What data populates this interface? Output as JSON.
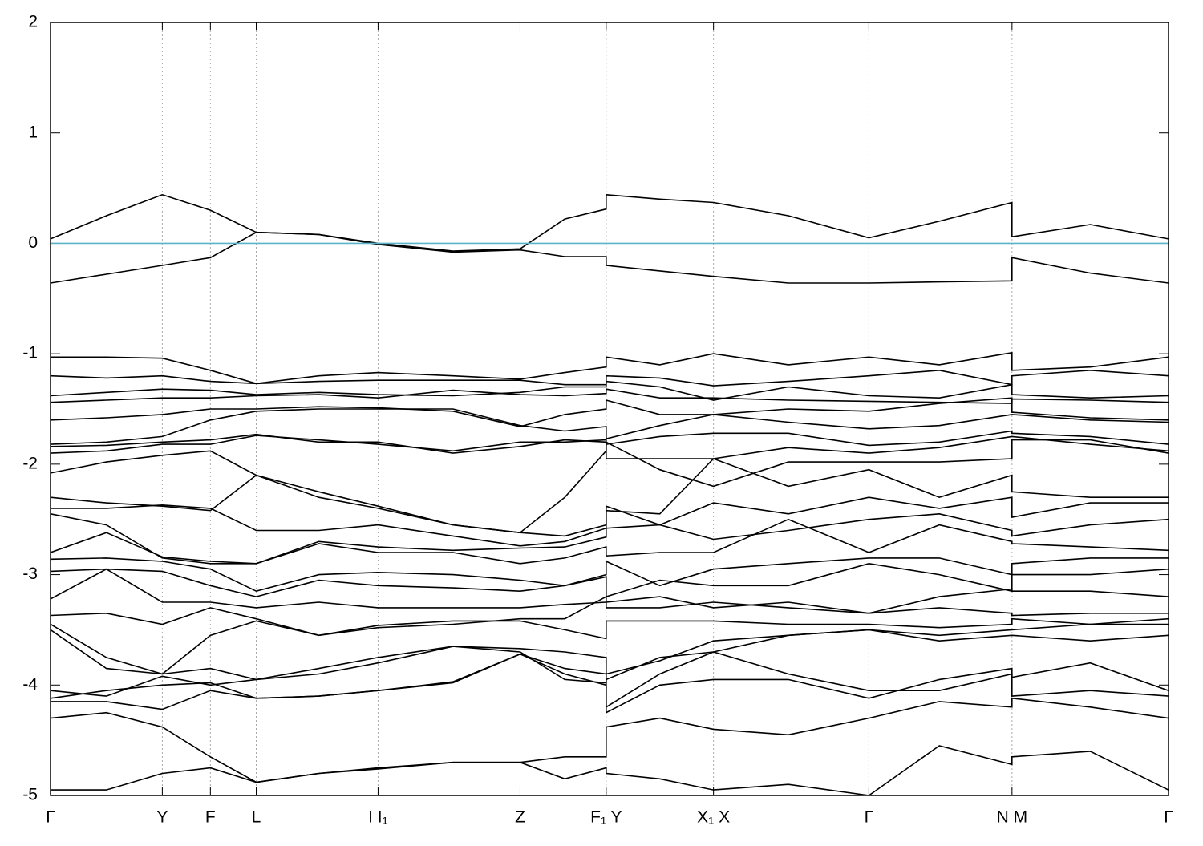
{
  "chart_data": {
    "type": "line",
    "x": [
      0,
      0.5,
      1.0,
      1.43,
      1.84,
      2.4,
      2.93,
      3.6,
      4.2,
      4.6,
      4.97,
      4.97,
      5.45,
      5.93,
      6.6,
      7.32,
      7.95,
      8.6,
      8.6,
      9.3,
      10.0
    ],
    "xlim": [
      0,
      10.0
    ],
    "ylim": [
      -5,
      2
    ],
    "yticks": [
      -5,
      -4,
      -3,
      -2,
      -1,
      0,
      1,
      2
    ],
    "xticks": [
      {
        "value": 0,
        "label": "Γ"
      },
      {
        "value": 1.0,
        "label": "Y"
      },
      {
        "value": 1.43,
        "label": "F"
      },
      {
        "value": 1.84,
        "label": "L"
      },
      {
        "value": 2.93,
        "label": "I  I₁"
      },
      {
        "value": 4.2,
        "label": "Z"
      },
      {
        "value": 4.97,
        "label": "F₁ Y"
      },
      {
        "value": 5.93,
        "label": "X₁ X"
      },
      {
        "value": 7.32,
        "label": "Γ"
      },
      {
        "value": 8.6,
        "label": "N M"
      },
      {
        "value": 10.0,
        "label": "Γ"
      }
    ],
    "xgrid": true,
    "hline": {
      "value": 0,
      "color": "#5ab4c6"
    },
    "line_color": "#000000",
    "series": [
      {
        "values": [
          0.04,
          0.25,
          0.44,
          0.3,
          0.1,
          0.08,
          0.0,
          -0.07,
          -0.05,
          0.22,
          0.31,
          0.44,
          0.4,
          0.37,
          0.25,
          0.05,
          0.2,
          0.37,
          0.06,
          0.17,
          0.04
        ]
      },
      {
        "values": [
          -0.36,
          -0.28,
          -0.2,
          -0.13,
          0.1,
          0.08,
          -0.01,
          -0.08,
          -0.06,
          -0.12,
          -0.12,
          -0.2,
          -0.25,
          -0.3,
          -0.36,
          -0.36,
          -0.35,
          -0.34,
          -0.13,
          -0.27,
          -0.36
        ]
      },
      {
        "values": [
          -1.03,
          -1.03,
          -1.04,
          -1.15,
          -1.27,
          -1.2,
          -1.17,
          -1.2,
          -1.23,
          -1.17,
          -1.12,
          -1.03,
          -1.1,
          -1.0,
          -1.1,
          -1.03,
          -1.1,
          -0.99,
          -1.15,
          -1.12,
          -1.03
        ]
      },
      {
        "values": [
          -1.2,
          -1.22,
          -1.2,
          -1.25,
          -1.27,
          -1.25,
          -1.24,
          -1.24,
          -1.24,
          -1.28,
          -1.28,
          -1.2,
          -1.22,
          -1.29,
          -1.25,
          -1.2,
          -1.15,
          -1.28,
          -1.2,
          -1.15,
          -1.2
        ]
      },
      {
        "values": [
          -1.38,
          -1.35,
          -1.32,
          -1.33,
          -1.37,
          -1.35,
          -1.37,
          -1.38,
          -1.35,
          -1.3,
          -1.3,
          -1.25,
          -1.3,
          -1.42,
          -1.3,
          -1.38,
          -1.4,
          -1.28,
          -1.37,
          -1.4,
          -1.38
        ]
      },
      {
        "values": [
          -1.44,
          -1.42,
          -1.4,
          -1.4,
          -1.38,
          -1.37,
          -1.4,
          -1.33,
          -1.37,
          -1.38,
          -1.36,
          -1.32,
          -1.4,
          -1.4,
          -1.42,
          -1.43,
          -1.44,
          -1.45,
          -1.41,
          -1.42,
          -1.44
        ]
      },
      {
        "values": [
          -1.6,
          -1.58,
          -1.55,
          -1.5,
          -1.5,
          -1.48,
          -1.49,
          -1.52,
          -1.66,
          -1.55,
          -1.5,
          -1.42,
          -1.55,
          -1.55,
          -1.5,
          -1.52,
          -1.45,
          -1.4,
          -1.53,
          -1.58,
          -1.6
        ]
      },
      {
        "values": [
          -1.82,
          -1.8,
          -1.75,
          -1.6,
          -1.52,
          -1.5,
          -1.5,
          -1.5,
          -1.65,
          -1.7,
          -1.66,
          -1.77,
          -1.65,
          -1.55,
          -1.62,
          -1.68,
          -1.65,
          -1.55,
          -1.55,
          -1.6,
          -1.62
        ]
      },
      {
        "values": [
          -1.84,
          -1.83,
          -1.8,
          -1.78,
          -1.73,
          -1.8,
          -1.8,
          -1.9,
          -1.84,
          -1.78,
          -1.8,
          -1.82,
          -1.75,
          -1.72,
          -1.72,
          -1.83,
          -1.8,
          -1.7,
          -1.72,
          -1.75,
          -1.82
        ]
      },
      {
        "values": [
          -1.9,
          -1.88,
          -1.82,
          -1.82,
          -1.74,
          -1.78,
          -1.82,
          -1.88,
          -1.8,
          -1.8,
          -1.78,
          -1.95,
          -1.95,
          -1.95,
          -1.85,
          -1.9,
          -1.85,
          -1.75,
          -1.75,
          -1.82,
          -1.88
        ]
      },
      {
        "values": [
          -2.08,
          -1.98,
          -1.92,
          -1.88,
          -2.1,
          -2.25,
          -2.38,
          -2.55,
          -2.62,
          -2.3,
          -1.88,
          -1.8,
          -2.05,
          -2.2,
          -1.98,
          -1.98,
          -1.98,
          -1.95,
          -1.78,
          -1.78,
          -1.9
        ]
      },
      {
        "values": [
          -2.3,
          -2.35,
          -2.38,
          -2.42,
          -2.1,
          -2.3,
          -2.4,
          -2.55,
          -2.62,
          -2.65,
          -2.55,
          -2.42,
          -2.45,
          -1.95,
          -2.2,
          -2.05,
          -2.3,
          -2.1,
          -2.25,
          -2.3,
          -2.3
        ]
      },
      {
        "values": [
          -2.4,
          -2.4,
          -2.37,
          -2.4,
          -2.6,
          -2.6,
          -2.55,
          -2.65,
          -2.74,
          -2.7,
          -2.58,
          -2.38,
          -2.55,
          -2.35,
          -2.45,
          -2.3,
          -2.4,
          -2.3,
          -2.48,
          -2.35,
          -2.35
        ]
      },
      {
        "values": [
          -2.45,
          -2.55,
          -2.85,
          -2.9,
          -2.9,
          -2.7,
          -2.75,
          -2.78,
          -2.76,
          -2.75,
          -2.66,
          -2.58,
          -2.55,
          -2.68,
          -2.6,
          -2.5,
          -2.45,
          -2.6,
          -2.65,
          -2.55,
          -2.5
        ]
      },
      {
        "values": [
          -2.8,
          -2.62,
          -2.84,
          -2.88,
          -2.9,
          -2.72,
          -2.8,
          -2.8,
          -2.9,
          -2.85,
          -2.75,
          -2.83,
          -2.8,
          -2.8,
          -2.5,
          -2.8,
          -2.55,
          -2.7,
          -2.72,
          -2.75,
          -2.78
        ]
      },
      {
        "values": [
          -2.86,
          -2.85,
          -2.88,
          -2.95,
          -3.15,
          -3.0,
          -2.98,
          -3.0,
          -3.05,
          -3.1,
          -3.0,
          -2.88,
          -3.1,
          -2.95,
          -2.9,
          -2.85,
          -2.85,
          -3.0,
          -2.9,
          -2.85,
          -2.85
        ]
      },
      {
        "values": [
          -2.97,
          -2.95,
          -2.97,
          -3.1,
          -3.2,
          -3.05,
          -3.1,
          -3.12,
          -3.15,
          -3.1,
          -3.02,
          -3.2,
          -3.05,
          -3.1,
          -3.1,
          -2.9,
          -3.0,
          -3.15,
          -3.0,
          -3.0,
          -2.95
        ]
      },
      {
        "values": [
          -3.22,
          -2.95,
          -3.25,
          -3.25,
          -3.3,
          -3.25,
          -3.3,
          -3.3,
          -3.3,
          -3.27,
          -3.25,
          -3.25,
          -3.2,
          -3.3,
          -3.25,
          -3.35,
          -3.2,
          -3.13,
          -3.15,
          -3.15,
          -3.2
        ]
      },
      {
        "values": [
          -3.37,
          -3.35,
          -3.45,
          -3.3,
          -3.4,
          -3.55,
          -3.48,
          -3.45,
          -3.4,
          -3.4,
          -3.2,
          -3.3,
          -3.3,
          -3.25,
          -3.3,
          -3.35,
          -3.3,
          -3.35,
          -3.37,
          -3.35,
          -3.35
        ]
      },
      {
        "values": [
          -3.45,
          -3.75,
          -3.9,
          -3.55,
          -3.42,
          -3.55,
          -3.46,
          -3.42,
          -3.42,
          -3.5,
          -3.58,
          -3.42,
          -3.42,
          -3.42,
          -3.45,
          -3.45,
          -3.48,
          -3.45,
          -3.4,
          -3.45,
          -3.4
        ]
      },
      {
        "values": [
          -3.5,
          -3.85,
          -3.9,
          -3.85,
          -3.95,
          -3.85,
          -3.75,
          -3.65,
          -3.67,
          -3.7,
          -3.75,
          -3.9,
          -3.78,
          -3.6,
          -3.55,
          -3.5,
          -3.55,
          -3.5,
          -3.5,
          -3.45,
          -3.45
        ]
      },
      {
        "values": [
          -4.05,
          -4.1,
          -3.92,
          -4.0,
          -3.95,
          -3.9,
          -3.8,
          -3.65,
          -3.7,
          -3.95,
          -3.98,
          -3.95,
          -3.75,
          -3.7,
          -3.55,
          -3.5,
          -3.6,
          -3.55,
          -3.55,
          -3.6,
          -3.55
        ]
      },
      {
        "values": [
          -4.12,
          -4.05,
          -4.0,
          -3.98,
          -4.12,
          -4.1,
          -4.05,
          -3.98,
          -3.72,
          -3.9,
          -4.0,
          -4.2,
          -3.9,
          -3.7,
          -3.9,
          -4.05,
          -4.05,
          -3.9,
          -3.93,
          -3.8,
          -4.05
        ]
      },
      {
        "values": [
          -4.15,
          -4.15,
          -4.22,
          -4.05,
          -4.12,
          -4.1,
          -4.05,
          -3.97,
          -3.72,
          -3.85,
          -3.9,
          -4.25,
          -4.0,
          -3.95,
          -3.95,
          -4.12,
          -3.95,
          -3.85,
          -4.1,
          -4.05,
          -4.1
        ]
      },
      {
        "values": [
          -4.3,
          -4.25,
          -4.38,
          -4.65,
          -4.88,
          -4.8,
          -4.75,
          -4.7,
          -4.7,
          -4.65,
          -4.65,
          -4.38,
          -4.3,
          -4.4,
          -4.45,
          -4.3,
          -4.15,
          -4.2,
          -4.12,
          -4.2,
          -4.3
        ]
      },
      {
        "values": [
          -4.95,
          -4.95,
          -4.8,
          -4.75,
          -4.88,
          -4.8,
          -4.76,
          -4.7,
          -4.7,
          -4.85,
          -4.75,
          -4.8,
          -4.85,
          -4.95,
          -4.9,
          -5.0,
          -4.55,
          -4.72,
          -4.65,
          -4.6,
          -4.95
        ]
      }
    ]
  }
}
